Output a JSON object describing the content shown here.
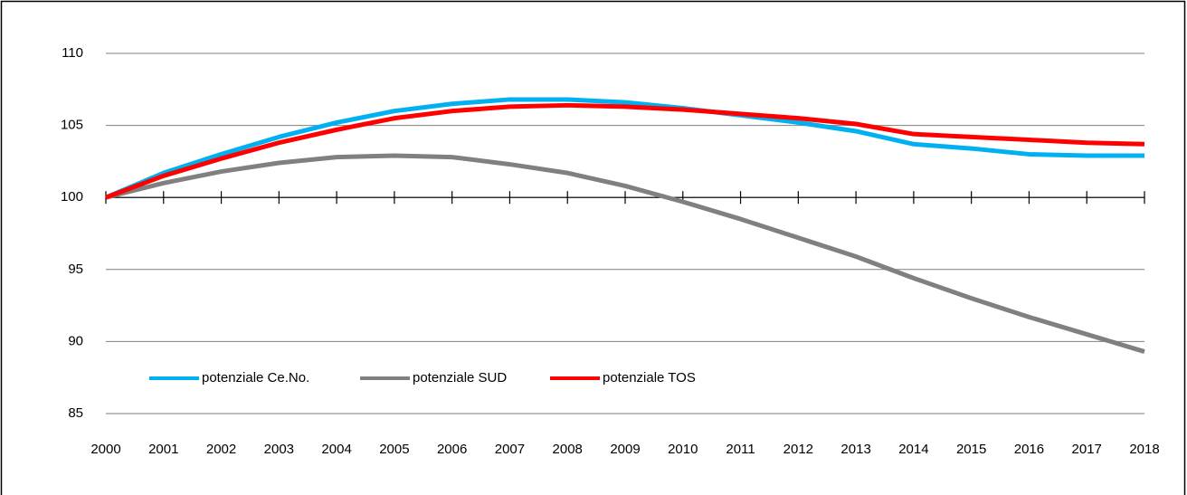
{
  "chart_data": {
    "type": "line",
    "x": [
      2000,
      2001,
      2002,
      2003,
      2004,
      2005,
      2006,
      2007,
      2008,
      2009,
      2010,
      2011,
      2012,
      2013,
      2014,
      2015,
      2016,
      2017,
      2018
    ],
    "series": [
      {
        "name": "potenziale Ce.No.",
        "color": "#00b0f0",
        "values": [
          100,
          101.7,
          103.0,
          104.2,
          105.2,
          106.0,
          106.5,
          106.8,
          106.8,
          106.6,
          106.2,
          105.7,
          105.2,
          104.6,
          103.7,
          103.4,
          103.0,
          102.9,
          102.9
        ]
      },
      {
        "name": "potenziale SUD",
        "color": "#808080",
        "values": [
          100,
          101.0,
          101.8,
          102.4,
          102.8,
          102.9,
          102.8,
          102.3,
          101.7,
          100.8,
          99.7,
          98.5,
          97.2,
          95.9,
          94.4,
          93.0,
          91.7,
          90.5,
          89.3
        ]
      },
      {
        "name": "potenziale TOS",
        "color": "#ff0000",
        "values": [
          100,
          101.5,
          102.7,
          103.8,
          104.7,
          105.5,
          106.0,
          106.3,
          106.4,
          106.3,
          106.1,
          105.8,
          105.5,
          105.1,
          104.4,
          104.2,
          104.0,
          103.8,
          103.7
        ]
      }
    ],
    "xlim": [
      2000,
      2018
    ],
    "xticks": [
      2000,
      2001,
      2002,
      2003,
      2004,
      2005,
      2006,
      2007,
      2008,
      2009,
      2010,
      2011,
      2012,
      2013,
      2014,
      2015,
      2016,
      2017,
      2018
    ],
    "ylim": [
      85,
      110
    ],
    "yticks": [
      85,
      90,
      95,
      100,
      105,
      110
    ],
    "x_axis_crosses": 100,
    "grid": true,
    "legend": "lower left"
  }
}
